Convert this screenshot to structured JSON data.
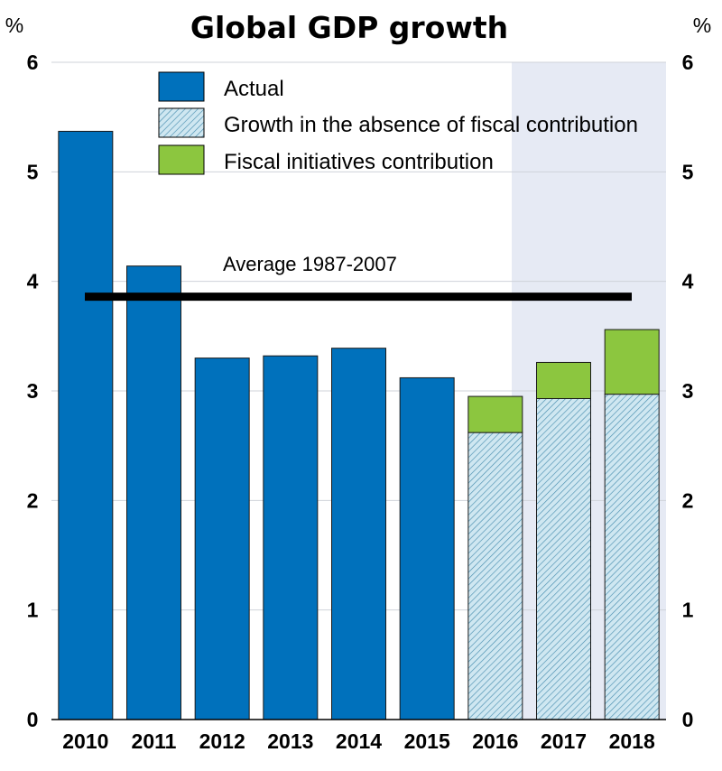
{
  "chart_data": {
    "type": "bar",
    "title": "Global GDP growth",
    "y_unit_left": "%",
    "y_unit_right": "%",
    "ylim": [
      0,
      6
    ],
    "yticks": [
      "0",
      "1",
      "2",
      "3",
      "4",
      "5",
      "6"
    ],
    "categories": [
      "2010",
      "2011",
      "2012",
      "2013",
      "2014",
      "2015",
      "2016",
      "2017",
      "2018"
    ],
    "projection_start": "2016",
    "series": [
      {
        "name": "Actual",
        "color": "#0071bc",
        "values": [
          5.37,
          4.14,
          3.3,
          3.32,
          3.39,
          3.12,
          null,
          null,
          null
        ]
      },
      {
        "name": "Growth in the absence of fiscal contribution",
        "color": "#c8e6f0",
        "pattern": "hatch",
        "values": [
          null,
          null,
          null,
          null,
          null,
          null,
          2.62,
          2.93,
          2.97
        ]
      },
      {
        "name": "Fiscal initiatives contribution",
        "color": "#8cc63f",
        "values": [
          null,
          null,
          null,
          null,
          null,
          null,
          0.33,
          0.33,
          0.59
        ]
      }
    ],
    "reference_line": {
      "label": "Average 1987-2007",
      "value": 3.86,
      "color": "#000000"
    },
    "shade_color": "#e6eaf4",
    "legend_position": "top-left"
  }
}
